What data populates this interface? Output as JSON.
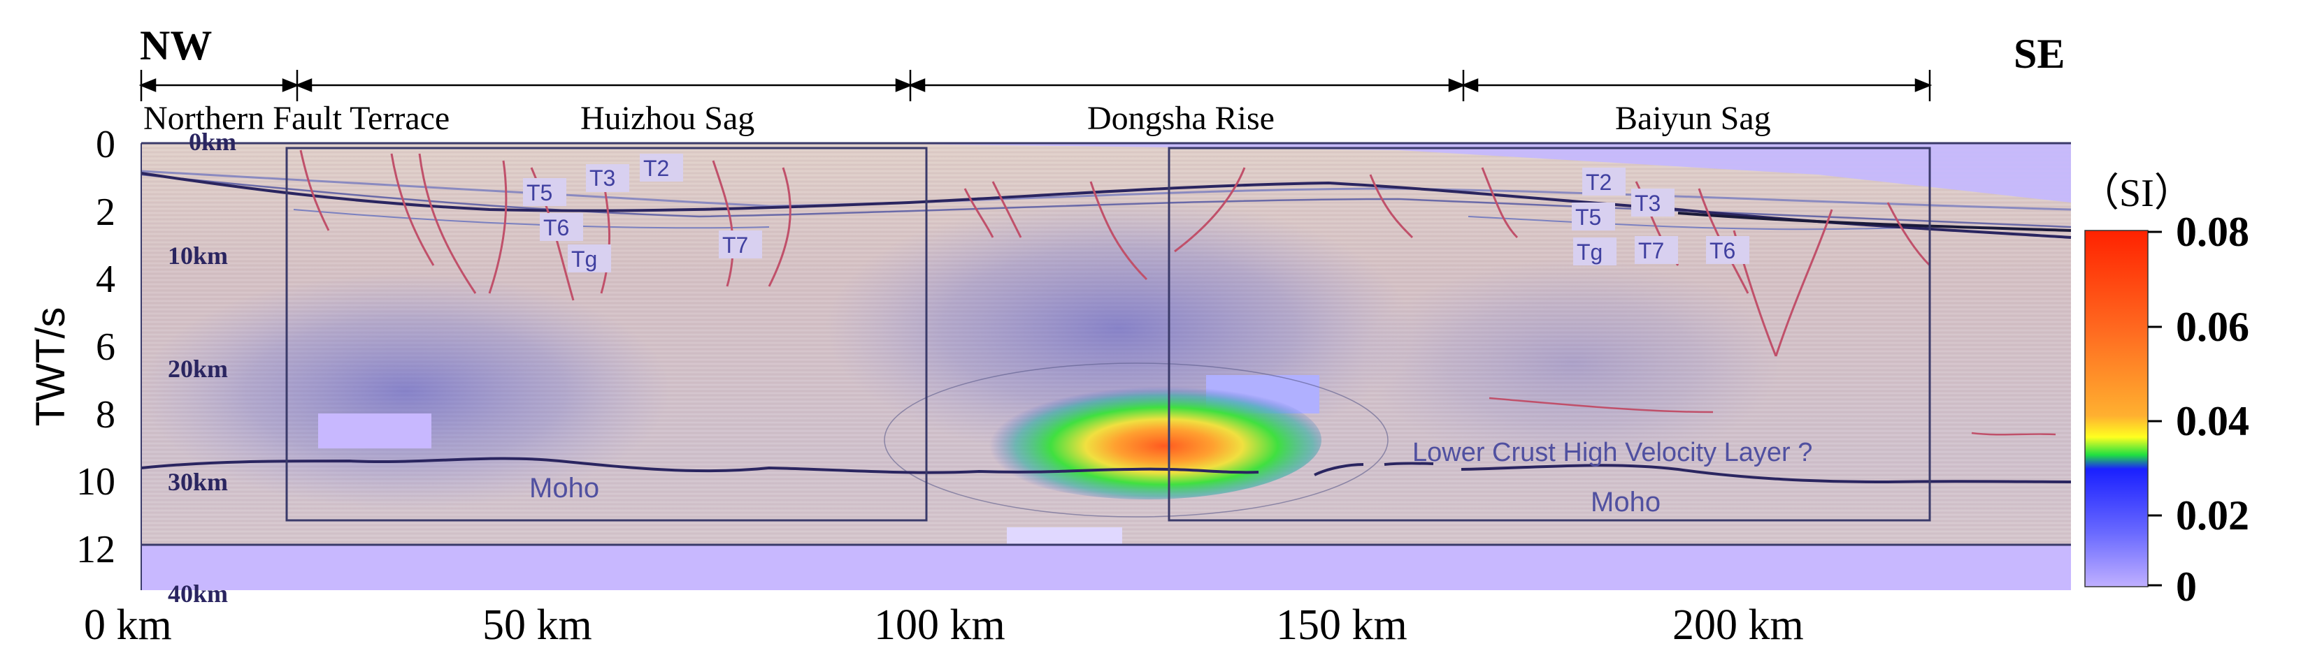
{
  "orientation": {
    "left": "NW",
    "right": "SE"
  },
  "regions": [
    {
      "label": "Northern Fault Terrace"
    },
    {
      "label": "Huizhou Sag"
    },
    {
      "label": "Dongsha Rise"
    },
    {
      "label": "Baiyun Sag"
    }
  ],
  "axes": {
    "y_label": "TWT/s",
    "y_ticks": [
      "0",
      "2",
      "4",
      "6",
      "8",
      "10",
      "12"
    ],
    "depth_ticks": [
      "0km",
      "10km",
      "20km",
      "30km",
      "40km"
    ],
    "x_ticks": [
      "0 km",
      "50 km",
      "100 km",
      "150 km",
      "200 km"
    ]
  },
  "horizons": [
    "T2",
    "T3",
    "T5",
    "T6",
    "Tg",
    "T7"
  ],
  "horizons_right": [
    "T2",
    "T3",
    "T5",
    "Tg",
    "T7",
    "T6"
  ],
  "features": {
    "moho_left": "Moho",
    "moho_right": "Moho",
    "hvl": "Lower Crust High Velocity Layer ?"
  },
  "colorbar": {
    "unit": "（SI）",
    "ticks": [
      "0.08",
      "0.06",
      "0.04",
      "0.02",
      "0"
    ],
    "colors": [
      "#ff2a1a",
      "#ff6a1a",
      "#ffb020",
      "#ffff20",
      "#30e040",
      "#1a30ff",
      "#7a7aff",
      "#b8b0ff"
    ]
  },
  "colors": {
    "seismic_bg": "#d9c3c0",
    "fault": "#c0506a",
    "moho": "#2a2560",
    "anomaly_band": "#c8b8ff"
  }
}
